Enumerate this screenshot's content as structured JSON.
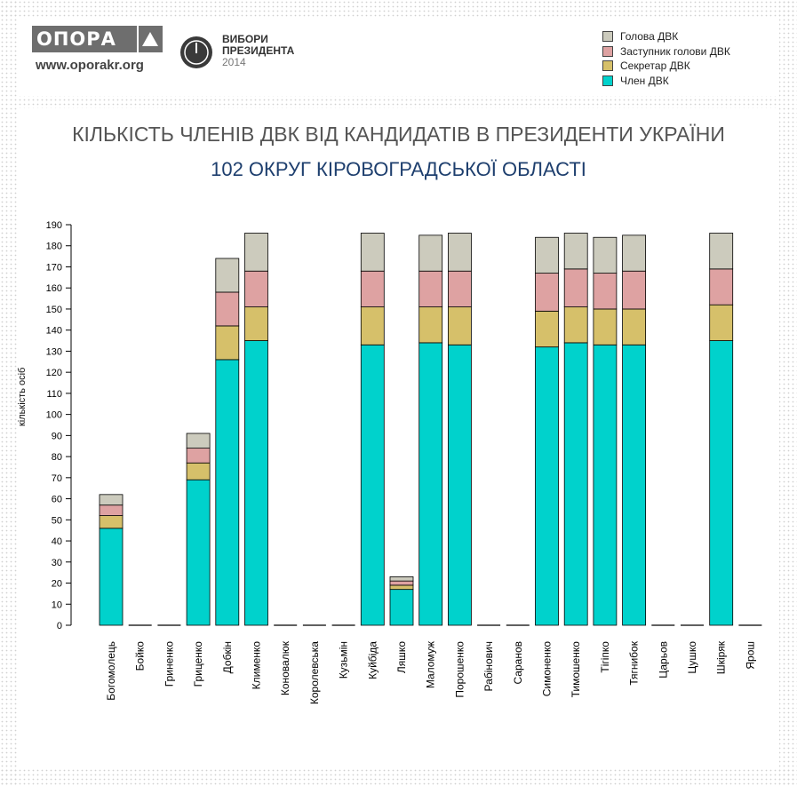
{
  "header": {
    "logo_text": "ОПОРА",
    "logo_url": "www.oporakr.org",
    "vybory_line1": "ВИБОРИ",
    "vybory_line2": "ПРЕЗИДЕНТА",
    "vybory_year": "2014"
  },
  "chart_data": {
    "type": "bar",
    "stacked": true,
    "title": "КІЛЬКІСТЬ ЧЛЕНІВ ДВК ВІД КАНДИДАТІВ В ПРЕЗИДЕНТИ УКРАЇНИ",
    "subtitle": "102 ОКРУГ КІРОВОГРАДСЬКОЇ ОБЛАСТІ",
    "xlabel": "",
    "ylabel": "кількість осіб",
    "ylim": [
      0,
      190
    ],
    "yticks": [
      0,
      10,
      20,
      30,
      40,
      50,
      60,
      70,
      80,
      90,
      100,
      110,
      120,
      130,
      140,
      150,
      160,
      170,
      180,
      190
    ],
    "legend_position": "top-right",
    "categories": [
      "Богомолець",
      "Бойко",
      "Гриненко",
      "Гриценко",
      "Добкін",
      "Клименко",
      "Коновалюк",
      "Королевська",
      "Кузьмін",
      "Куйбіда",
      "Ляшко",
      "Маломуж",
      "Порошенко",
      "Рабінович",
      "Саранов",
      "Симоненко",
      "Тимошенко",
      "Тігіпко",
      "Тягнибок",
      "Царьов",
      "Цушко",
      "Шкіряк",
      "Ярош"
    ],
    "series": [
      {
        "name": "Член ДВК",
        "color": "#00d2cc",
        "values": [
          46,
          0,
          0,
          69,
          126,
          135,
          0,
          0,
          0,
          133,
          17,
          134,
          133,
          0,
          0,
          132,
          134,
          133,
          133,
          0,
          0,
          135,
          0
        ]
      },
      {
        "name": "Секретар ДВК",
        "color": "#d6c06a",
        "values": [
          6,
          0,
          0,
          8,
          16,
          16,
          0,
          0,
          0,
          18,
          2,
          17,
          18,
          0,
          0,
          17,
          17,
          17,
          17,
          0,
          0,
          17,
          0
        ]
      },
      {
        "name": "Заступник голови ДВК",
        "color": "#dea2a2",
        "values": [
          5,
          0,
          0,
          7,
          16,
          17,
          0,
          0,
          0,
          17,
          2,
          17,
          17,
          0,
          0,
          18,
          18,
          17,
          18,
          0,
          0,
          17,
          0
        ]
      },
      {
        "name": "Голова ДВК",
        "color": "#cccbbd",
        "values": [
          5,
          0,
          0,
          7,
          16,
          18,
          0,
          0,
          0,
          18,
          2,
          17,
          18,
          0,
          0,
          17,
          17,
          17,
          17,
          0,
          0,
          17,
          0
        ]
      }
    ],
    "legend_order": [
      "Голова ДВК",
      "Заступник голови ДВК",
      "Секретар ДВК",
      "Член ДВК"
    ]
  }
}
